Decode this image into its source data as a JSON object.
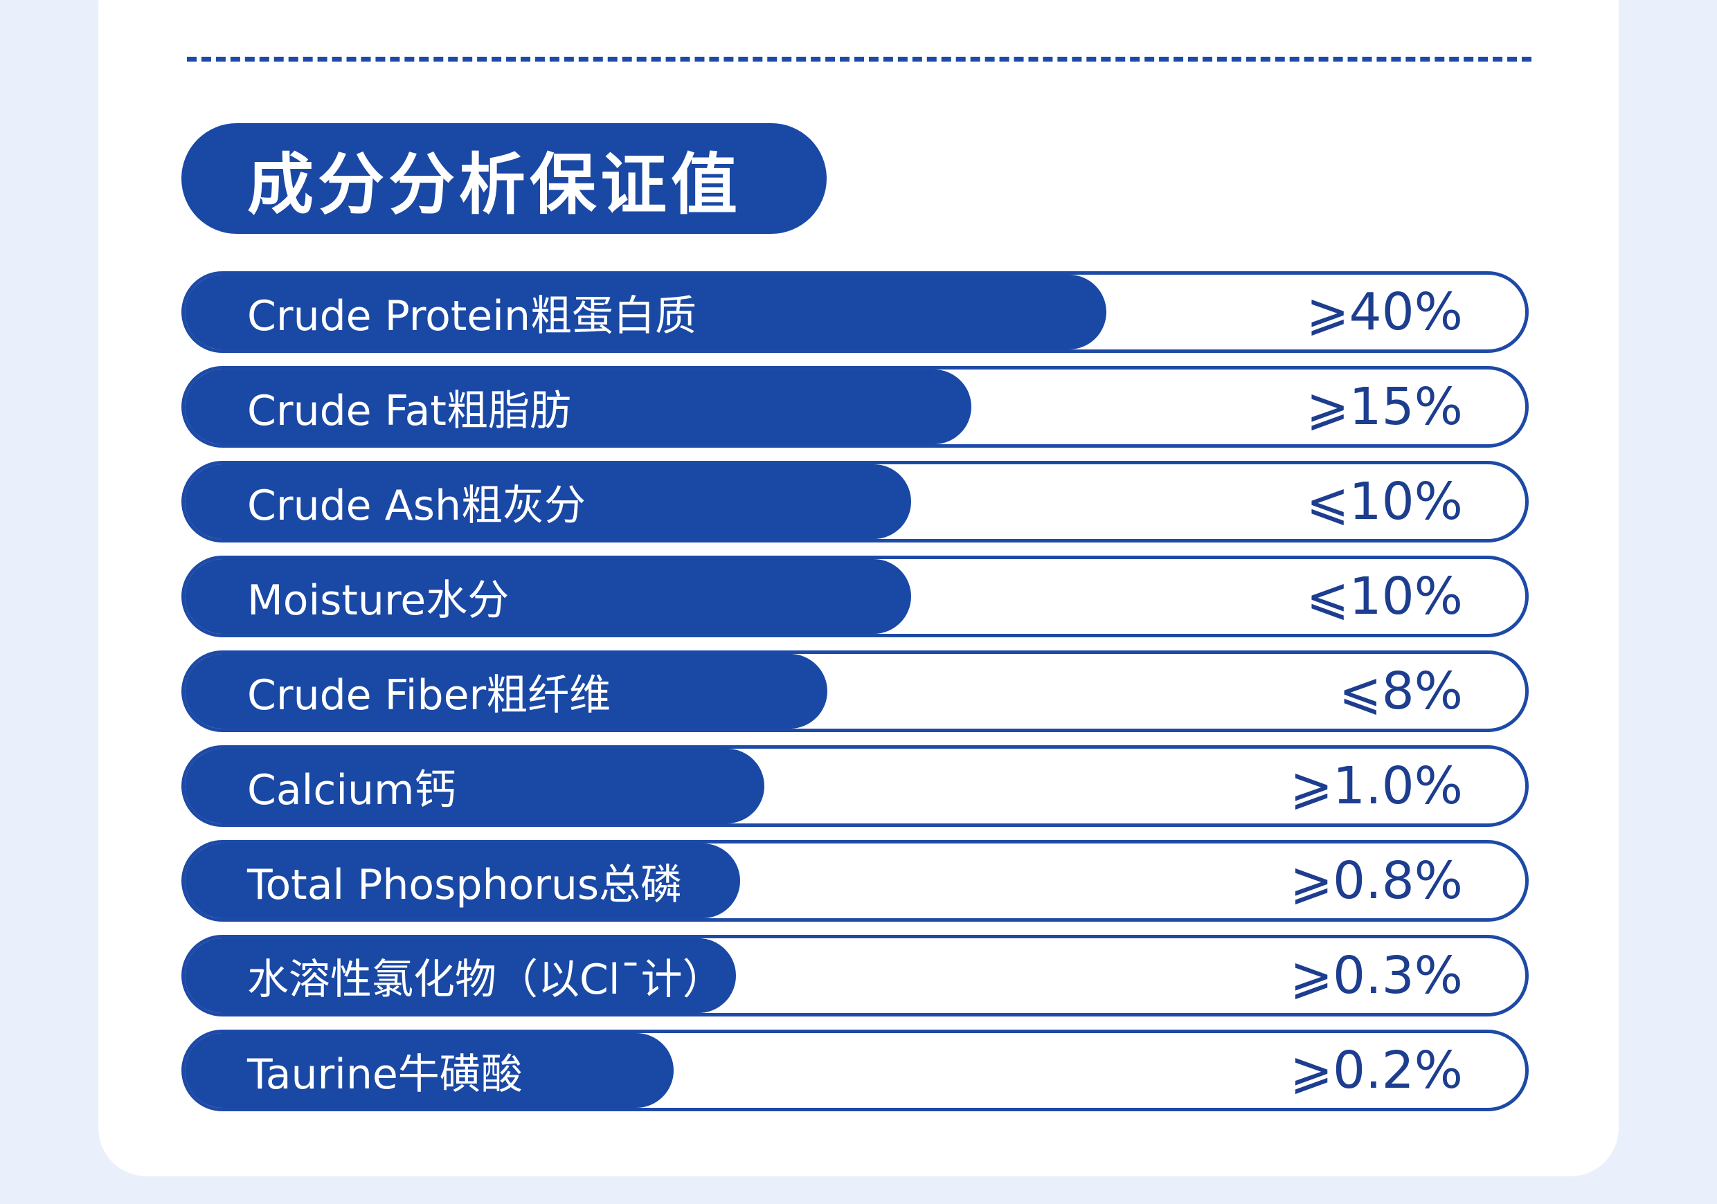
{
  "colors": {
    "page_background": "#e9f0fb",
    "card_background": "#ffffff",
    "accent_blue": "#1a48a5",
    "value_text": "#1d3d8f"
  },
  "title": "成分分析保证值",
  "chart_data": {
    "type": "bar",
    "title": "成分分析保证值",
    "orientation": "horizontal",
    "categories": [
      "Crude Protein粗蛋白质",
      "Crude Fat粗脂肪",
      "Crude Ash粗灰分",
      "Moisture水分",
      "Crude Fiber粗纤维",
      "Calcium钙",
      "Total Phosphorus总磷",
      "水溶性氯化物（以Cl¯计）",
      "Taurine牛磺酸"
    ],
    "value_labels": [
      "⩾40%",
      "⩾15%",
      "⩽10%",
      "⩽10%",
      "⩽8%",
      "⩾1.0%",
      "⩾0.8%",
      "⩾0.3%",
      "⩾0.2%"
    ],
    "values": [
      40,
      15,
      10,
      10,
      8,
      1.0,
      0.8,
      0.3,
      0.2
    ],
    "fill_fractions": [
      0.684,
      0.584,
      0.539,
      0.539,
      0.477,
      0.43,
      0.412,
      0.409,
      0.363
    ]
  }
}
